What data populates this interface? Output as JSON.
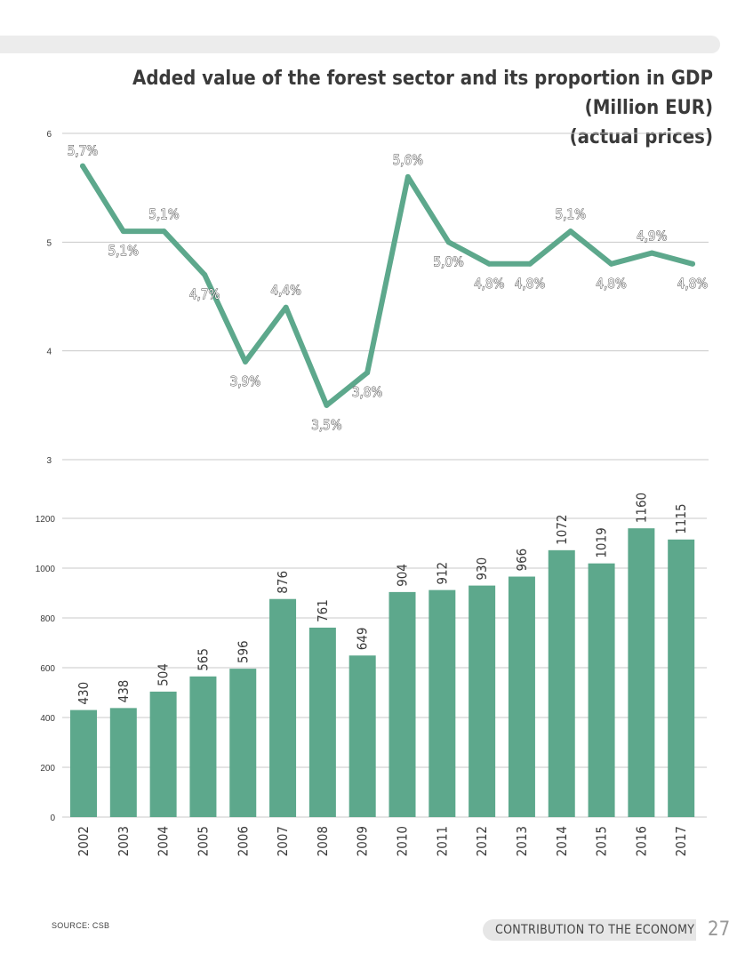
{
  "page": {
    "title_line1": "Added value of the forest sector and its proportion in GDP (Million EUR)",
    "title_line2": "(actual prices)",
    "source": "SOURCE: CSB",
    "section": "CONTRIBUTION TO THE ECONOMY",
    "page_number": "27"
  },
  "colors": {
    "series": "#5da88c",
    "grid": "#c8c8c8",
    "text": "#3a3a3a",
    "label": "#444444"
  },
  "chart_data": [
    {
      "type": "line",
      "x": [
        "2002",
        "2003",
        "2004",
        "2005",
        "2006",
        "2007",
        "2008",
        "2009",
        "2010",
        "2011",
        "2012",
        "2013",
        "2014",
        "2015",
        "2016",
        "2017"
      ],
      "values": [
        5.7,
        5.1,
        5.1,
        4.7,
        3.9,
        4.4,
        3.5,
        3.8,
        5.6,
        5.0,
        4.8,
        4.8,
        5.1,
        4.8,
        4.9,
        4.8
      ],
      "data_labels": [
        "5,7%",
        "5,1%",
        "5,1%",
        "4,7%",
        "3,9%",
        "4,4%",
        "3,5%",
        "3,8%",
        "5,6%",
        "5,0%",
        "4,8%",
        "4,8%",
        "5,1%",
        "4,8%",
        "4,9%",
        "4,8%"
      ],
      "ylim": [
        3,
        6
      ],
      "yticks": [
        "3",
        "4",
        "5",
        "6"
      ],
      "grid": true
    },
    {
      "type": "bar",
      "categories": [
        "2002",
        "2003",
        "2004",
        "2005",
        "2006",
        "2007",
        "2008",
        "2009",
        "2010",
        "2011",
        "2012",
        "2013",
        "2014",
        "2015",
        "2016",
        "2017"
      ],
      "values": [
        430,
        438,
        504,
        565,
        596,
        876,
        761,
        649,
        904,
        912,
        930,
        966,
        1072,
        1019,
        1160,
        1115
      ],
      "ylim": [
        0,
        1200
      ],
      "yticks": [
        "0",
        "200",
        "400",
        "600",
        "800",
        "1000",
        "1200"
      ],
      "grid": true
    }
  ]
}
